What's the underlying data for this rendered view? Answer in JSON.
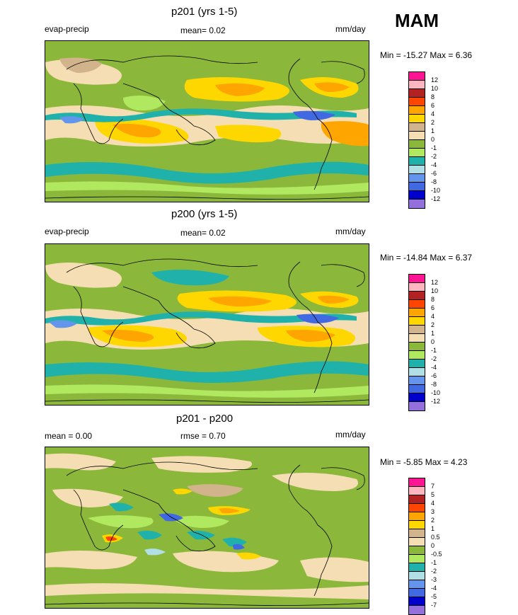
{
  "season": "MAM",
  "colors": {
    "scale12": [
      "#ff1493",
      "#ffb6c1",
      "#b22222",
      "#ff4500",
      "#ffa500",
      "#ffd700",
      "#d2b48c",
      "#f5deb3",
      "#8bb83a",
      "#b0e860",
      "#20b2aa",
      "#b0e0e6",
      "#6495ed",
      "#4169e1",
      "#0000cd",
      "#9370db"
    ],
    "diff": [
      "#ff1493",
      "#ffb6c1",
      "#b22222",
      "#ff4500",
      "#ffa500",
      "#ffd700",
      "#d2b48c",
      "#f5deb3",
      "#8bb83a",
      "#b0e860",
      "#20b2aa",
      "#b0e0e6",
      "#6495ed",
      "#4169e1",
      "#0000cd",
      "#9370db"
    ]
  },
  "panels": [
    {
      "title": "p201 (yrs 1-5)",
      "left_label": "evap-precip",
      "center_label": "mean=  0.02",
      "units": "mm/day",
      "minmax": "Min = -15.27 Max =   6.36",
      "ticks": [
        "12",
        "10",
        "8",
        "6",
        "4",
        "2",
        "1",
        "0",
        "-1",
        "-2",
        "-4",
        "-6",
        "-8",
        "-10",
        "-12"
      ]
    },
    {
      "title": "p200 (yrs 1-5)",
      "left_label": "evap-precip",
      "center_label": "mean=  0.02",
      "units": "mm/day",
      "minmax": "Min = -14.84 Max =   6.37",
      "ticks": [
        "12",
        "10",
        "8",
        "6",
        "4",
        "2",
        "1",
        "0",
        "-1",
        "-2",
        "-4",
        "-6",
        "-8",
        "-10",
        "-12"
      ]
    },
    {
      "title": "p201 - p200",
      "left_label": "mean =   0.00",
      "center_label": "rmse =   0.70",
      "units": "mm/day",
      "minmax": "Min =  -5.85 Max =   4.23",
      "ticks": [
        "7",
        "5",
        "4",
        "3",
        "2",
        "1",
        "0.5",
        "0",
        "-0.5",
        "-1",
        "-2",
        "-3",
        "-4",
        "-5",
        "-7"
      ]
    }
  ]
}
